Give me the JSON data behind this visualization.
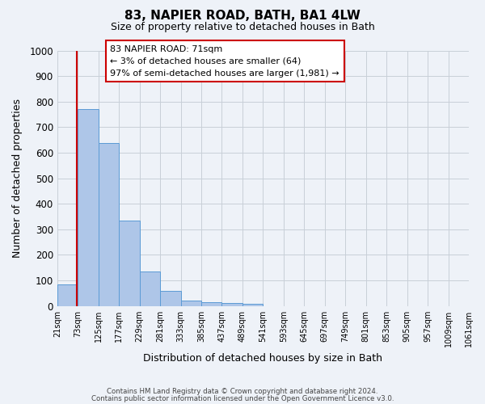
{
  "title": "83, NAPIER ROAD, BATH, BA1 4LW",
  "subtitle": "Size of property relative to detached houses in Bath",
  "xlabel": "Distribution of detached houses by size in Bath",
  "ylabel": "Number of detached properties",
  "bar_values": [
    85,
    770,
    638,
    335,
    135,
    60,
    22,
    15,
    10,
    8,
    0,
    0,
    0,
    0,
    0,
    0,
    0,
    0,
    0,
    0
  ],
  "bin_labels": [
    "21sqm",
    "73sqm",
    "125sqm",
    "177sqm",
    "229sqm",
    "281sqm",
    "333sqm",
    "385sqm",
    "437sqm",
    "489sqm",
    "541sqm",
    "593sqm",
    "645sqm",
    "697sqm",
    "749sqm",
    "801sqm",
    "853sqm",
    "905sqm",
    "957sqm",
    "1009sqm",
    "1061sqm"
  ],
  "bar_color": "#aec6e8",
  "bar_edge_color": "#5b9bd5",
  "background_color": "#eef2f8",
  "grid_color": "#c8cfd8",
  "property_line_color": "#cc0000",
  "annotation_text": "83 NAPIER ROAD: 71sqm\n← 3% of detached houses are smaller (64)\n97% of semi-detached houses are larger (1,981) →",
  "annotation_box_color": "#ffffff",
  "annotation_box_edge": "#cc0000",
  "ylim": [
    0,
    1000
  ],
  "footer_line1": "Contains HM Land Registry data © Crown copyright and database right 2024.",
  "footer_line2": "Contains public sector information licensed under the Open Government Licence v3.0."
}
